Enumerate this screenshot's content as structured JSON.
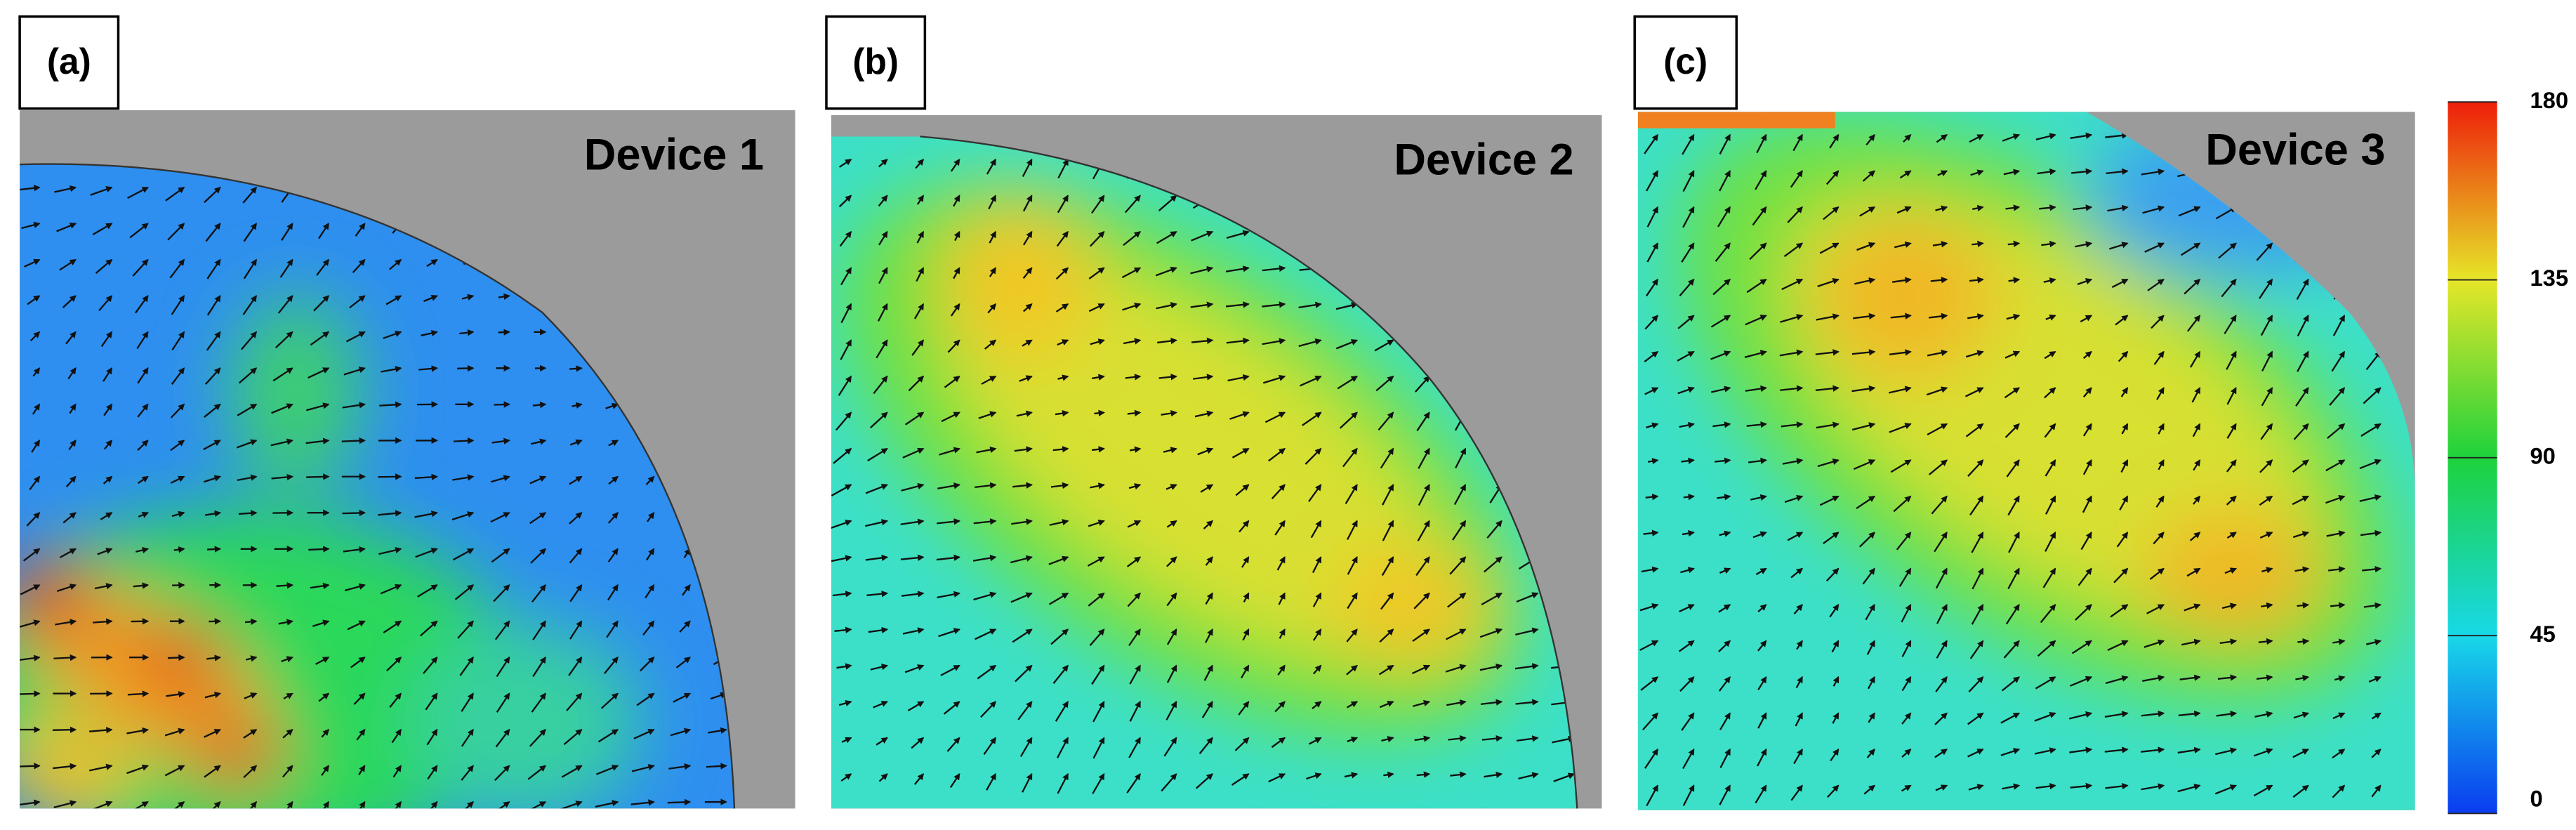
{
  "panels": [
    {
      "label": "(a)",
      "title": "Device 1"
    },
    {
      "label": "(b)",
      "title": "Device 2"
    },
    {
      "label": "(c)",
      "title": "Device 3"
    }
  ],
  "colorbar": {
    "range": [
      0,
      180
    ],
    "ticks": [
      0,
      45,
      90,
      135,
      180
    ]
  }
}
